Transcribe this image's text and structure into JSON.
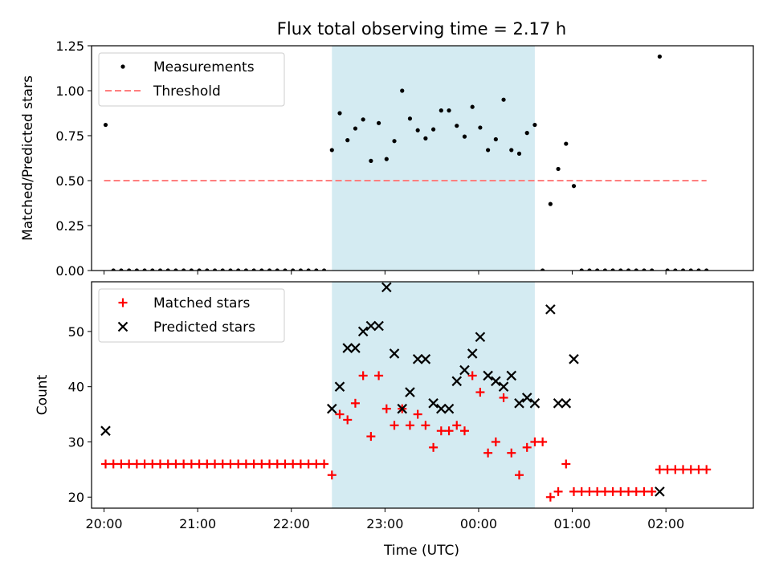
{
  "figure": {
    "title": "Flux total observing time = 2.17 h",
    "xlabel": "Time (UTC)"
  },
  "colors": {
    "shade": "#add8e6",
    "measurement": "#000000",
    "threshold": "#ff7f7f",
    "matched": "#ff0000",
    "predicted": "#000000"
  },
  "chart_data": [
    {
      "type": "scatter",
      "ylabel": "Matched/Predicted stars",
      "ylim": [
        0,
        1.25
      ],
      "yticks": [
        "0.00",
        "0.25",
        "0.50",
        "0.75",
        "1.00",
        "1.25"
      ],
      "xlim": [
        "19:52",
        "02:56"
      ],
      "xticks": [
        "20:00",
        "21:00",
        "22:00",
        "23:00",
        "00:00",
        "01:00",
        "02:00"
      ],
      "shaded_interval": [
        "22:26",
        "00:36"
      ],
      "grid": false,
      "legend_position": "upper left",
      "threshold": {
        "name": "Threshold",
        "y": 0.5,
        "x_range": [
          "20:00",
          "02:26"
        ]
      },
      "series": [
        {
          "name": "Measurements",
          "marker": "dot",
          "points": [
            [
              "20:01",
              0.81
            ],
            [
              "20:06",
              0
            ],
            [
              "20:11",
              0
            ],
            [
              "20:16",
              0
            ],
            [
              "20:21",
              0
            ],
            [
              "20:26",
              0
            ],
            [
              "20:31",
              0
            ],
            [
              "20:36",
              0
            ],
            [
              "20:41",
              0
            ],
            [
              "20:46",
              0
            ],
            [
              "20:51",
              0
            ],
            [
              "20:56",
              0
            ],
            [
              "21:01",
              0
            ],
            [
              "21:06",
              0
            ],
            [
              "21:11",
              0
            ],
            [
              "21:16",
              0
            ],
            [
              "21:21",
              0
            ],
            [
              "21:26",
              0
            ],
            [
              "21:31",
              0
            ],
            [
              "21:36",
              0
            ],
            [
              "21:41",
              0
            ],
            [
              "21:46",
              0
            ],
            [
              "21:51",
              0
            ],
            [
              "21:56",
              0
            ],
            [
              "22:01",
              0
            ],
            [
              "22:06",
              0
            ],
            [
              "22:11",
              0
            ],
            [
              "22:16",
              0
            ],
            [
              "22:21",
              0
            ],
            [
              "22:26",
              0.67
            ],
            [
              "22:31",
              0.875
            ],
            [
              "22:36",
              0.725
            ],
            [
              "22:41",
              0.79
            ],
            [
              "22:46",
              0.84
            ],
            [
              "22:51",
              0.61
            ],
            [
              "22:56",
              0.82
            ],
            [
              "23:01",
              0.62
            ],
            [
              "23:06",
              0.72
            ],
            [
              "23:11",
              1.0
            ],
            [
              "23:16",
              0.845
            ],
            [
              "23:21",
              0.78
            ],
            [
              "23:26",
              0.735
            ],
            [
              "23:31",
              0.785
            ],
            [
              "23:36",
              0.89
            ],
            [
              "23:41",
              0.89
            ],
            [
              "23:46",
              0.805
            ],
            [
              "23:51",
              0.745
            ],
            [
              "23:56",
              0.91
            ],
            [
              "00:01",
              0.795
            ],
            [
              "00:06",
              0.67
            ],
            [
              "00:11",
              0.73
            ],
            [
              "00:16",
              0.95
            ],
            [
              "00:21",
              0.67
            ],
            [
              "00:26",
              0.65
            ],
            [
              "00:31",
              0.765
            ],
            [
              "00:36",
              0.81
            ],
            [
              "00:41",
              0
            ],
            [
              "00:46",
              0.37
            ],
            [
              "00:51",
              0.565
            ],
            [
              "00:56",
              0.705
            ],
            [
              "01:01",
              0.47
            ],
            [
              "01:06",
              0
            ],
            [
              "01:11",
              0
            ],
            [
              "01:16",
              0
            ],
            [
              "01:21",
              0
            ],
            [
              "01:26",
              0
            ],
            [
              "01:31",
              0
            ],
            [
              "01:36",
              0
            ],
            [
              "01:41",
              0
            ],
            [
              "01:46",
              0
            ],
            [
              "01:51",
              0
            ],
            [
              "01:56",
              1.19
            ],
            [
              "02:01",
              0
            ],
            [
              "02:06",
              0
            ],
            [
              "02:11",
              0
            ],
            [
              "02:16",
              0
            ],
            [
              "02:21",
              0
            ],
            [
              "02:26",
              0
            ]
          ]
        }
      ]
    },
    {
      "type": "scatter",
      "ylabel": "Count",
      "ylim": [
        18,
        59
      ],
      "yticks": [
        "20",
        "30",
        "40",
        "50"
      ],
      "xlim": [
        "19:52",
        "02:56"
      ],
      "xticks": [
        "20:00",
        "21:00",
        "22:00",
        "23:00",
        "00:00",
        "01:00",
        "02:00"
      ],
      "shaded_interval": [
        "22:26",
        "00:36"
      ],
      "grid": false,
      "legend_position": "upper left",
      "series": [
        {
          "name": "Matched stars",
          "marker": "plus",
          "points": [
            [
              "20:01",
              26
            ],
            [
              "20:06",
              26
            ],
            [
              "20:11",
              26
            ],
            [
              "20:16",
              26
            ],
            [
              "20:21",
              26
            ],
            [
              "20:26",
              26
            ],
            [
              "20:31",
              26
            ],
            [
              "20:36",
              26
            ],
            [
              "20:41",
              26
            ],
            [
              "20:46",
              26
            ],
            [
              "20:51",
              26
            ],
            [
              "20:56",
              26
            ],
            [
              "21:01",
              26
            ],
            [
              "21:06",
              26
            ],
            [
              "21:11",
              26
            ],
            [
              "21:16",
              26
            ],
            [
              "21:21",
              26
            ],
            [
              "21:26",
              26
            ],
            [
              "21:31",
              26
            ],
            [
              "21:36",
              26
            ],
            [
              "21:41",
              26
            ],
            [
              "21:46",
              26
            ],
            [
              "21:51",
              26
            ],
            [
              "21:56",
              26
            ],
            [
              "22:01",
              26
            ],
            [
              "22:06",
              26
            ],
            [
              "22:11",
              26
            ],
            [
              "22:16",
              26
            ],
            [
              "22:21",
              26
            ],
            [
              "22:26",
              24
            ],
            [
              "22:31",
              35
            ],
            [
              "22:36",
              34
            ],
            [
              "22:41",
              37
            ],
            [
              "22:46",
              42
            ],
            [
              "22:51",
              31
            ],
            [
              "22:56",
              42
            ],
            [
              "23:01",
              36
            ],
            [
              "23:06",
              33
            ],
            [
              "23:11",
              36
            ],
            [
              "23:16",
              33
            ],
            [
              "23:21",
              35
            ],
            [
              "23:26",
              33
            ],
            [
              "23:31",
              29
            ],
            [
              "23:36",
              32
            ],
            [
              "23:41",
              32
            ],
            [
              "23:46",
              33
            ],
            [
              "23:51",
              32
            ],
            [
              "23:56",
              42
            ],
            [
              "00:01",
              39
            ],
            [
              "00:06",
              28
            ],
            [
              "00:11",
              30
            ],
            [
              "00:16",
              38
            ],
            [
              "00:21",
              28
            ],
            [
              "00:26",
              24
            ],
            [
              "00:31",
              29
            ],
            [
              "00:36",
              30
            ],
            [
              "00:41",
              30
            ],
            [
              "00:46",
              20
            ],
            [
              "00:51",
              21
            ],
            [
              "00:56",
              26
            ],
            [
              "01:01",
              21
            ],
            [
              "01:06",
              21
            ],
            [
              "01:11",
              21
            ],
            [
              "01:16",
              21
            ],
            [
              "01:21",
              21
            ],
            [
              "01:26",
              21
            ],
            [
              "01:31",
              21
            ],
            [
              "01:36",
              21
            ],
            [
              "01:41",
              21
            ],
            [
              "01:46",
              21
            ],
            [
              "01:51",
              21
            ],
            [
              "01:56",
              25
            ],
            [
              "02:01",
              25
            ],
            [
              "02:06",
              25
            ],
            [
              "02:11",
              25
            ],
            [
              "02:16",
              25
            ],
            [
              "02:21",
              25
            ],
            [
              "02:26",
              25
            ]
          ]
        },
        {
          "name": "Predicted stars",
          "marker": "x",
          "points": [
            [
              "20:01",
              32
            ],
            [
              "22:26",
              36
            ],
            [
              "22:31",
              40
            ],
            [
              "22:36",
              47
            ],
            [
              "22:41",
              47
            ],
            [
              "22:46",
              50
            ],
            [
              "22:51",
              51
            ],
            [
              "22:56",
              51
            ],
            [
              "23:01",
              58
            ],
            [
              "23:06",
              46
            ],
            [
              "23:11",
              36
            ],
            [
              "23:16",
              39
            ],
            [
              "23:21",
              45
            ],
            [
              "23:26",
              45
            ],
            [
              "23:31",
              37
            ],
            [
              "23:36",
              36
            ],
            [
              "23:41",
              36
            ],
            [
              "23:46",
              41
            ],
            [
              "23:51",
              43
            ],
            [
              "23:56",
              46
            ],
            [
              "00:01",
              49
            ],
            [
              "00:06",
              42
            ],
            [
              "00:11",
              41
            ],
            [
              "00:16",
              40
            ],
            [
              "00:21",
              42
            ],
            [
              "00:26",
              37
            ],
            [
              "00:31",
              38
            ],
            [
              "00:36",
              37
            ],
            [
              "00:46",
              54
            ],
            [
              "00:51",
              37
            ],
            [
              "00:56",
              37
            ],
            [
              "01:01",
              45
            ],
            [
              "01:56",
              21
            ]
          ]
        }
      ]
    }
  ]
}
